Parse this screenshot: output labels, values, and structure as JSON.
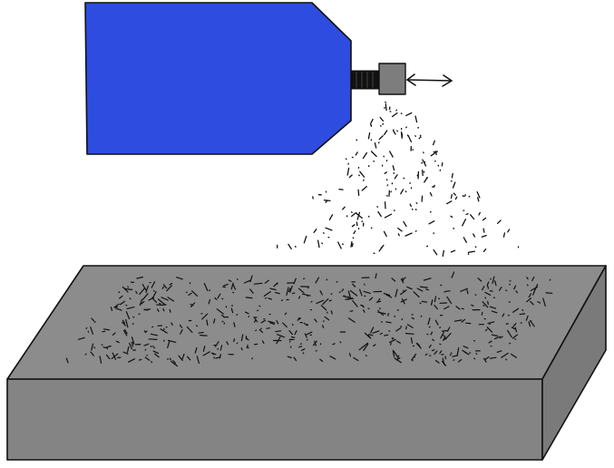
{
  "colors": {
    "background": "#ffffff",
    "tank_fill": "#2e4ce0",
    "nozzle_dark": "#111111",
    "nozzle_head": "#7d7d7d",
    "block_top": "#8c8c8c",
    "block_front": "#848484",
    "block_side": "#7a7a7a",
    "outline": "#111111",
    "particle": "#111111"
  },
  "icons": {
    "motion_arrow": "double-headed-arrow-icon"
  }
}
